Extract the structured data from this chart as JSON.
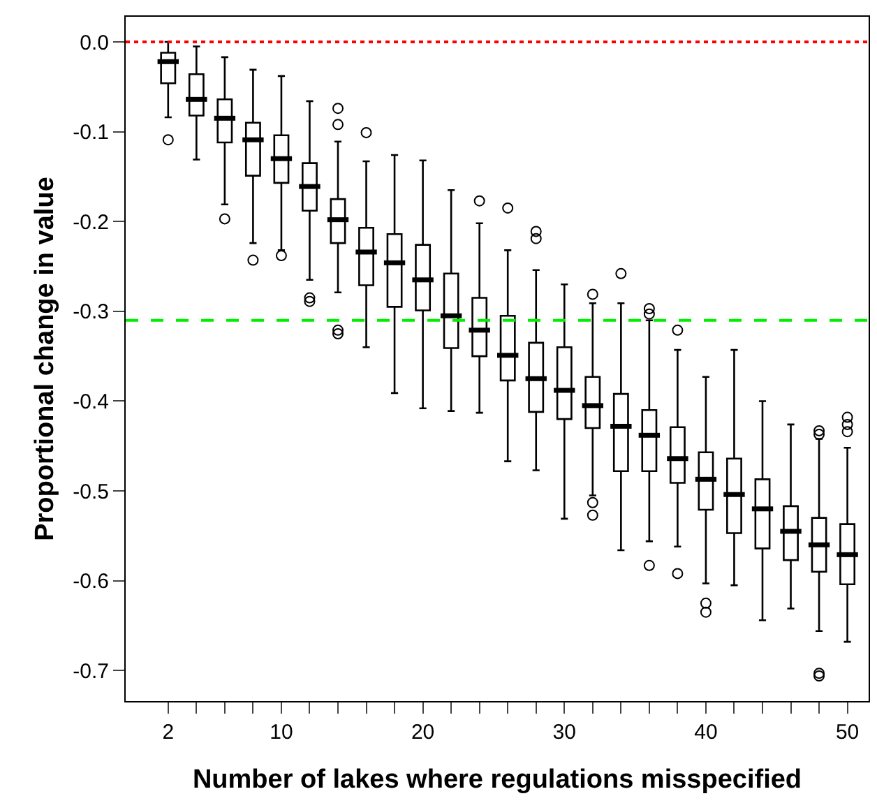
{
  "chart_data": {
    "type": "box",
    "xlabel": "Number of lakes where regulations misspecified",
    "ylabel": "Proportional change in value",
    "x": [
      2,
      4,
      6,
      8,
      10,
      12,
      14,
      16,
      18,
      20,
      22,
      24,
      26,
      28,
      30,
      32,
      34,
      36,
      38,
      40,
      42,
      44,
      46,
      48,
      50
    ],
    "color": "#000000",
    "boxes": [
      {
        "low": -0.084,
        "q1": -0.046,
        "median": -0.022,
        "q3": -0.012,
        "high": 0.0,
        "outliers": [
          -0.109
        ]
      },
      {
        "low": -0.131,
        "q1": -0.082,
        "median": -0.064,
        "q3": -0.036,
        "high": -0.005
      },
      {
        "low": -0.181,
        "q1": -0.112,
        "median": -0.085,
        "q3": -0.064,
        "high": -0.017,
        "outliers": [
          -0.197
        ]
      },
      {
        "low": -0.224,
        "q1": -0.149,
        "median": -0.109,
        "q3": -0.09,
        "high": -0.031,
        "outliers": [
          -0.243
        ]
      },
      {
        "low": -0.232,
        "q1": -0.157,
        "median": -0.13,
        "q3": -0.104,
        "high": -0.038,
        "outliers": [
          -0.238
        ]
      },
      {
        "low": -0.265,
        "q1": -0.188,
        "median": -0.161,
        "q3": -0.135,
        "high": -0.066,
        "outliers": [
          -0.285,
          -0.289
        ]
      },
      {
        "low": -0.279,
        "q1": -0.224,
        "median": -0.198,
        "q3": -0.175,
        "high": -0.111,
        "outliers": [
          -0.074,
          -0.092,
          -0.321,
          -0.325
        ]
      },
      {
        "low": -0.34,
        "q1": -0.271,
        "median": -0.234,
        "q3": -0.207,
        "high": -0.133,
        "outliers": [
          -0.101
        ]
      },
      {
        "low": -0.391,
        "q1": -0.295,
        "median": -0.246,
        "q3": -0.214,
        "high": -0.126
      },
      {
        "low": -0.408,
        "q1": -0.299,
        "median": -0.265,
        "q3": -0.226,
        "high": -0.132
      },
      {
        "low": -0.411,
        "q1": -0.341,
        "median": -0.305,
        "q3": -0.258,
        "high": -0.165
      },
      {
        "low": -0.413,
        "q1": -0.35,
        "median": -0.321,
        "q3": -0.285,
        "high": -0.202,
        "outliers": [
          -0.177
        ]
      },
      {
        "low": -0.467,
        "q1": -0.377,
        "median": -0.349,
        "q3": -0.305,
        "high": -0.232,
        "outliers": [
          -0.185
        ]
      },
      {
        "low": -0.477,
        "q1": -0.412,
        "median": -0.375,
        "q3": -0.335,
        "high": -0.254,
        "outliers": [
          -0.211,
          -0.219
        ]
      },
      {
        "low": -0.531,
        "q1": -0.42,
        "median": -0.388,
        "q3": -0.34,
        "high": -0.27
      },
      {
        "low": -0.505,
        "q1": -0.43,
        "median": -0.405,
        "q3": -0.373,
        "high": -0.291,
        "outliers": [
          -0.281,
          -0.513,
          -0.527
        ]
      },
      {
        "low": -0.566,
        "q1": -0.478,
        "median": -0.428,
        "q3": -0.392,
        "high": -0.291,
        "outliers": [
          -0.258
        ]
      },
      {
        "low": -0.556,
        "q1": -0.478,
        "median": -0.438,
        "q3": -0.41,
        "high": -0.31,
        "outliers": [
          -0.297,
          -0.303,
          -0.583
        ]
      },
      {
        "low": -0.562,
        "q1": -0.491,
        "median": -0.464,
        "q3": -0.429,
        "high": -0.343,
        "outliers": [
          -0.321,
          -0.592
        ]
      },
      {
        "low": -0.603,
        "q1": -0.521,
        "median": -0.487,
        "q3": -0.457,
        "high": -0.373,
        "outliers": [
          -0.625,
          -0.635
        ]
      },
      {
        "low": -0.605,
        "q1": -0.547,
        "median": -0.504,
        "q3": -0.464,
        "high": -0.343
      },
      {
        "low": -0.644,
        "q1": -0.564,
        "median": -0.52,
        "q3": -0.487,
        "high": -0.4
      },
      {
        "low": -0.631,
        "q1": -0.577,
        "median": -0.545,
        "q3": -0.517,
        "high": -0.426
      },
      {
        "low": -0.656,
        "q1": -0.59,
        "median": -0.56,
        "q3": -0.53,
        "high": -0.442,
        "outliers": [
          -0.433,
          -0.437,
          -0.703,
          -0.706
        ]
      },
      {
        "low": -0.668,
        "q1": -0.604,
        "median": -0.571,
        "q3": -0.537,
        "high": -0.452,
        "outliers": [
          -0.418,
          -0.426,
          -0.434
        ]
      }
    ],
    "xlim": [
      -1,
      51.5
    ],
    "xticks": [
      2,
      {
        "value": 4,
        "label": null
      },
      {
        "value": 6,
        "label": null
      },
      {
        "value": 8,
        "label": null
      },
      10,
      {
        "value": 12,
        "label": null
      },
      {
        "value": 14,
        "label": null
      },
      {
        "value": 16,
        "label": null
      },
      {
        "value": 18,
        "label": null
      },
      20,
      {
        "value": 22,
        "label": null
      },
      {
        "value": 24,
        "label": null
      },
      {
        "value": 26,
        "label": null
      },
      {
        "value": 28,
        "label": null
      },
      30,
      {
        "value": 32,
        "label": null
      },
      {
        "value": 34,
        "label": null
      },
      {
        "value": 36,
        "label": null
      },
      {
        "value": 38,
        "label": null
      },
      40,
      {
        "value": 42,
        "label": null
      },
      {
        "value": 44,
        "label": null
      },
      {
        "value": 46,
        "label": null
      },
      {
        "value": 48,
        "label": null
      },
      50
    ],
    "ylim": [
      -0.734,
      0.028
    ],
    "yticks": [
      {
        "value": 0,
        "label": "0.0"
      },
      -0.1,
      -0.2,
      -0.3,
      -0.4,
      -0.5,
      -0.6,
      -0.7
    ],
    "ref_lines": [
      {
        "axis": "y",
        "value": 0,
        "color": "#ff0000",
        "line_style": "dotted"
      },
      {
        "axis": "y",
        "value": -0.31,
        "color": "#00ee00",
        "line_style": "dashed"
      }
    ]
  }
}
